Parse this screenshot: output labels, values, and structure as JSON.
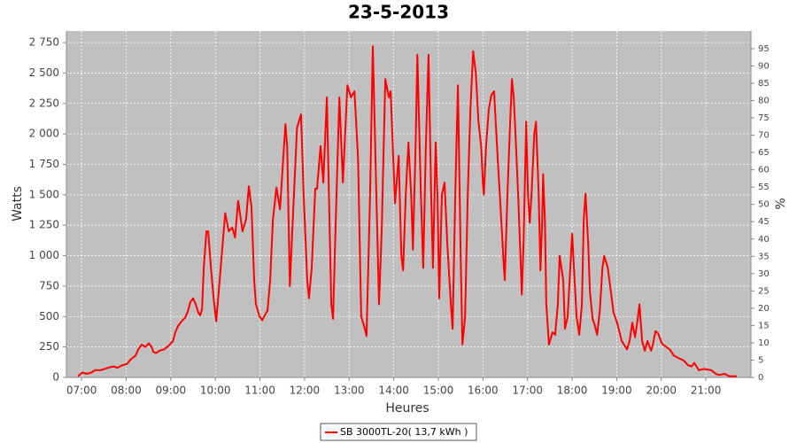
{
  "chart_data": {
    "type": "line",
    "title": "23-5-2013",
    "xlabel": "Heures",
    "ylabel": "Watts",
    "y2label": "%",
    "xlim": [
      6.66,
      22.01
    ],
    "xticks": [
      {
        "value": 7,
        "label": "07:00"
      },
      {
        "value": 8,
        "label": "08:00"
      },
      {
        "value": 9,
        "label": "09:00"
      },
      {
        "value": 10,
        "label": "10:00"
      },
      {
        "value": 11,
        "label": "11:00"
      },
      {
        "value": 12,
        "label": "12:00"
      },
      {
        "value": 13,
        "label": "13:00"
      },
      {
        "value": 14,
        "label": "14:00"
      },
      {
        "value": 15,
        "label": "15:00"
      },
      {
        "value": 16,
        "label": "16:00"
      },
      {
        "value": 17,
        "label": "17:00"
      },
      {
        "value": 18,
        "label": "18:00"
      },
      {
        "value": 19,
        "label": "19:00"
      },
      {
        "value": 20,
        "label": "20:00"
      },
      {
        "value": 21,
        "label": "21:00"
      }
    ],
    "ylim": [
      0,
      2845
    ],
    "yticks": [
      0,
      250,
      500,
      750,
      {
        "value": 1000,
        "label": "1 000"
      },
      {
        "value": 1250,
        "label": "1 250"
      },
      {
        "value": 1500,
        "label": "1 500"
      },
      {
        "value": 1750,
        "label": "1 750"
      },
      {
        "value": 2000,
        "label": "2 000"
      },
      {
        "value": 2250,
        "label": "2 250"
      },
      {
        "value": 2500,
        "label": "2 500"
      },
      {
        "value": 2750,
        "label": "2 750"
      }
    ],
    "y2lim": [
      0,
      100.1
    ],
    "y2ticks": [
      0,
      5,
      10,
      15,
      20,
      25,
      30,
      35,
      40,
      45,
      50,
      55,
      60,
      65,
      70,
      75,
      80,
      85,
      90,
      95
    ],
    "grid": true,
    "x": [
      6.92,
      7.02,
      7.12,
      7.22,
      7.3,
      7.42,
      7.52,
      7.6,
      7.71,
      7.81,
      7.91,
      8.01,
      8.11,
      8.21,
      8.27,
      8.35,
      8.43,
      8.51,
      8.57,
      8.61,
      8.67,
      8.75,
      8.85,
      8.95,
      9.05,
      9.1,
      9.16,
      9.24,
      9.32,
      9.38,
      9.44,
      9.5,
      9.56,
      9.62,
      9.66,
      9.7,
      9.74,
      9.8,
      9.84,
      9.9,
      9.96,
      10.02,
      10.22,
      10.3,
      10.38,
      10.44,
      10.51,
      10.61,
      10.69,
      10.75,
      10.81,
      10.87,
      10.91,
      10.99,
      11.05,
      11.17,
      11.23,
      11.29,
      11.37,
      11.45,
      11.57,
      11.61,
      11.67,
      11.75,
      11.83,
      11.92,
      11.98,
      12.06,
      12.1,
      12.16,
      12.24,
      12.28,
      12.36,
      12.42,
      12.5,
      12.6,
      12.64,
      12.7,
      12.78,
      12.86,
      12.96,
      13.04,
      13.12,
      13.2,
      13.27,
      13.35,
      13.39,
      13.47,
      13.53,
      13.59,
      13.67,
      13.73,
      13.81,
      13.89,
      13.93,
      13.99,
      14.03,
      14.11,
      14.17,
      14.21,
      14.27,
      14.33,
      14.39,
      14.43,
      14.49,
      14.53,
      14.61,
      14.66,
      14.72,
      14.78,
      14.84,
      14.88,
      14.94,
      14.98,
      15.02,
      15.08,
      15.14,
      15.2,
      15.28,
      15.32,
      15.38,
      15.44,
      15.5,
      15.54,
      15.6,
      15.66,
      15.72,
      15.78,
      15.84,
      15.9,
      15.96,
      16.0,
      16.02,
      16.07,
      16.13,
      16.19,
      16.25,
      16.33,
      16.41,
      16.47,
      16.49,
      16.55,
      16.61,
      16.65,
      16.69,
      16.73,
      16.79,
      16.85,
      16.87,
      16.91,
      16.97,
      17.01,
      17.05,
      17.09,
      17.15,
      17.19,
      17.25,
      17.29,
      17.33,
      17.35,
      17.39,
      17.42,
      17.48,
      17.56,
      17.62,
      17.68,
      17.72,
      17.8,
      17.84,
      17.9,
      17.96,
      18.0,
      18.04,
      18.1,
      18.16,
      18.22,
      18.26,
      18.3,
      18.36,
      18.4,
      18.46,
      18.5,
      18.56,
      18.62,
      18.68,
      18.72,
      18.8,
      18.87,
      18.93,
      19.01,
      19.11,
      19.23,
      19.29,
      19.35,
      19.41,
      19.47,
      19.51,
      19.57,
      19.63,
      19.69,
      19.77,
      19.81,
      19.87,
      19.93,
      20.01,
      20.11,
      20.19,
      20.28,
      20.38,
      20.5,
      20.6,
      20.68,
      20.74,
      20.84,
      20.96,
      21.12,
      21.22,
      21.3,
      21.42,
      21.52,
      21.69
    ],
    "series": [
      {
        "name": "SB 3000TL-20( 13,7 kWh )",
        "color": "#ff0000",
        "values": [
          10,
          40,
          30,
          40,
          60,
          60,
          70,
          80,
          90,
          80,
          100,
          110,
          150,
          180,
          230,
          270,
          250,
          280,
          250,
          210,
          200,
          220,
          230,
          260,
          300,
          370,
          420,
          460,
          490,
          540,
          620,
          650,
          600,
          530,
          510,
          560,
          900,
          1200,
          1200,
          900,
          650,
          460,
          1350,
          1200,
          1230,
          1150,
          1450,
          1200,
          1300,
          1570,
          1400,
          800,
          600,
          500,
          470,
          550,
          800,
          1300,
          1560,
          1380,
          2080,
          1900,
          750,
          1400,
          2050,
          2160,
          1500,
          800,
          650,
          900,
          1550,
          1550,
          1900,
          1600,
          2300,
          600,
          480,
          1300,
          2300,
          1600,
          2400,
          2300,
          2350,
          1800,
          500,
          400,
          340,
          1500,
          2720,
          1800,
          600,
          1200,
          2450,
          2300,
          2350,
          1800,
          1430,
          1820,
          1000,
          880,
          1500,
          1930,
          1500,
          1050,
          1900,
          2650,
          1500,
          900,
          1900,
          2650,
          1500,
          900,
          1930,
          1500,
          650,
          1500,
          1600,
          1100,
          600,
          400,
          1500,
          2400,
          1000,
          270,
          500,
          1500,
          2200,
          2680,
          2500,
          2100,
          1900,
          1600,
          1500,
          1900,
          2200,
          2320,
          2350,
          1800,
          1300,
          900,
          800,
          1500,
          2100,
          2450,
          2300,
          2000,
          1500,
          900,
          680,
          1100,
          2100,
          1500,
          1270,
          1500,
          2000,
          2100,
          1500,
          880,
          1300,
          1670,
          1300,
          600,
          270,
          370,
          350,
          600,
          1000,
          800,
          400,
          500,
          900,
          1180,
          900,
          500,
          350,
          600,
          1300,
          1510,
          1100,
          700,
          480,
          440,
          350,
          550,
          900,
          1000,
          900,
          700,
          530,
          450,
          300,
          230,
          300,
          450,
          330,
          480,
          600,
          300,
          220,
          300,
          220,
          270,
          380,
          360,
          280,
          250,
          230,
          180,
          160,
          140,
          100,
          90,
          120,
          60,
          70,
          60,
          30,
          20,
          30,
          10,
          10
        ]
      }
    ]
  }
}
